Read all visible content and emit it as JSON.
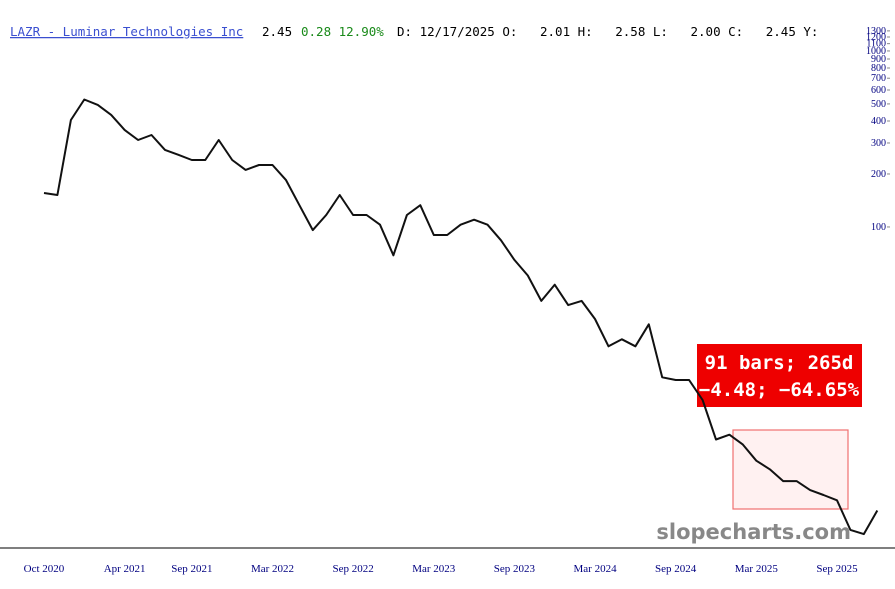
{
  "header": {
    "title": "LAZR - Luminar Technologies Inc",
    "last": "2.45",
    "change": "0.28 12.90%",
    "stats": "D: 12/17/2025 O:   2.01 H:   2.58 L:   2.00 C:   2.45 Y:"
  },
  "chart_data": {
    "type": "line",
    "log_scale": true,
    "grid": false,
    "color": "#111111",
    "x": [
      "Oct 2020",
      "Nov 2020",
      "Dec 2020",
      "Jan 2021",
      "Feb 2021",
      "Mar 2021",
      "Apr 2021",
      "May 2021",
      "Jun 2021",
      "Jul 2021",
      "Aug 2021",
      "Sep 2021",
      "Oct 2021",
      "Nov 2021",
      "Dec 2021",
      "Jan 2022",
      "Feb 2022",
      "Mar 2022",
      "Apr 2022",
      "May 2022",
      "Jun 2022",
      "Jul 2022",
      "Aug 2022",
      "Sep 2022",
      "Oct 2022",
      "Nov 2022",
      "Dec 2022",
      "Jan 2023",
      "Feb 2023",
      "Mar 2023",
      "Apr 2023",
      "May 2023",
      "Jun 2023",
      "Jul 2023",
      "Aug 2023",
      "Sep 2023",
      "Oct 2023",
      "Nov 2023",
      "Dec 2023",
      "Jan 2024",
      "Feb 2024",
      "Mar 2024",
      "Apr 2024",
      "May 2024",
      "Jun 2024",
      "Jul 2024",
      "Aug 2024",
      "Sep 2024",
      "Oct 2024",
      "Nov 2024",
      "Dec 2024",
      "Jan 2025",
      "Feb 2025",
      "Mar 2025",
      "Apr 2025",
      "May 2025",
      "Jun 2025",
      "Jul 2025",
      "Aug 2025",
      "Sep 2025",
      "Oct 2025",
      "Nov 2025",
      "Dec 2025"
    ],
    "values": [
      156,
      152,
      405,
      530,
      494,
      433,
      356,
      312,
      333,
      274,
      257,
      240,
      240,
      312,
      240,
      211,
      225,
      225,
      185,
      133,
      96,
      117,
      152,
      117,
      117,
      103,
      69,
      117,
      133,
      90,
      90,
      103,
      110,
      103,
      84,
      65,
      53,
      38,
      47,
      36,
      38,
      30,
      21,
      23,
      21,
      28,
      14,
      13.5,
      13.5,
      10.4,
      6.2,
      6.6,
      5.8,
      4.7,
      4.2,
      3.6,
      3.6,
      3.2,
      3.0,
      2.8,
      1.9,
      1.8,
      2.45
    ],
    "ylim": [
      1.5,
      1350
    ],
    "yticks": [
      100,
      200,
      300,
      400,
      500,
      600,
      700,
      800,
      900,
      1000,
      1100,
      1200,
      1300
    ],
    "xticks": [
      "Oct 2020",
      "Apr 2021",
      "Sep 2021",
      "Mar 2022",
      "Sep 2022",
      "Mar 2023",
      "Sep 2023",
      "Mar 2024",
      "Sep 2024",
      "Mar 2025",
      "Sep 2025"
    ],
    "annotations": [
      "91 bars; 265d",
      "−4.48; −64.65%"
    ],
    "watermark": "slopecharts.com"
  }
}
